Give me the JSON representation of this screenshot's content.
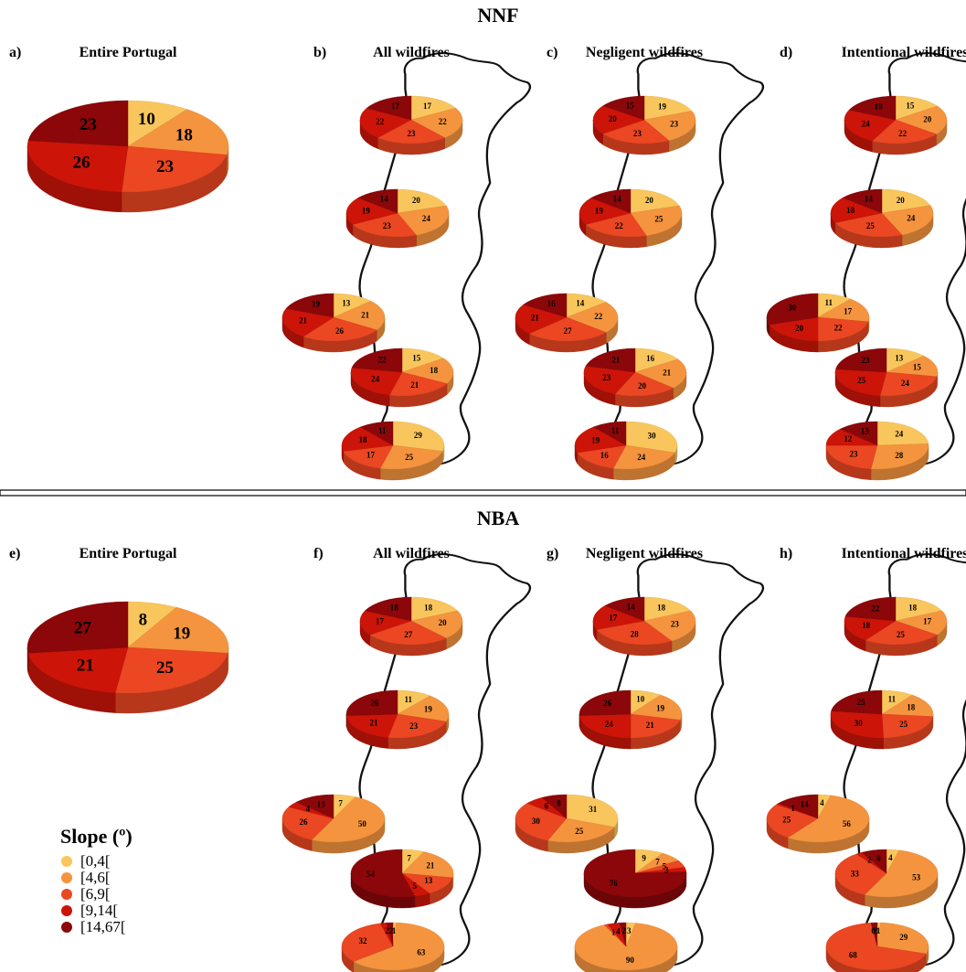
{
  "sections": [
    {
      "title": "NNF"
    },
    {
      "title": "NBA"
    }
  ],
  "legend": {
    "title": "Slope (º)",
    "items": [
      "[0,4[",
      "[4,6[",
      "[6,9[",
      "[9,14[",
      "[14,67["
    ],
    "colors": [
      "#f9c65d",
      "#f5943e",
      "#ea4722",
      "#cc1408",
      "#8b0709"
    ]
  },
  "chart_data": [
    {
      "type": "pie",
      "panel": "a)",
      "title": "Entire Portugal",
      "section": "NNF",
      "categories": [
        "[0,4[",
        "[4,6[",
        "[6,9[",
        "[9,14[",
        "[14,67["
      ],
      "values": [
        10,
        18,
        23,
        26,
        23
      ]
    },
    {
      "type": "pie",
      "panel": "b)",
      "title": "All wildfires",
      "section": "NNF",
      "regions": [
        {
          "values": [
            17,
            22,
            23,
            22,
            17
          ]
        },
        {
          "values": [
            20,
            24,
            23,
            19,
            14
          ]
        },
        {
          "values": [
            13,
            21,
            26,
            21,
            19
          ]
        },
        {
          "values": [
            15,
            18,
            21,
            24,
            22
          ]
        },
        {
          "values": [
            29,
            25,
            17,
            18,
            11
          ]
        }
      ]
    },
    {
      "type": "pie",
      "panel": "c)",
      "title": "Negligent wildfires",
      "section": "NNF",
      "regions": [
        {
          "values": [
            19,
            23,
            23,
            20,
            15
          ]
        },
        {
          "values": [
            20,
            25,
            22,
            19,
            14
          ]
        },
        {
          "values": [
            14,
            22,
            27,
            21,
            16
          ]
        },
        {
          "values": [
            16,
            21,
            20,
            23,
            21
          ]
        },
        {
          "values": [
            30,
            24,
            16,
            19,
            11
          ]
        }
      ]
    },
    {
      "type": "pie",
      "panel": "d)",
      "title": "Intentional wildfires",
      "section": "NNF",
      "regions": [
        {
          "values": [
            15,
            20,
            22,
            24,
            18
          ]
        },
        {
          "values": [
            20,
            24,
            25,
            18,
            14
          ]
        },
        {
          "values": [
            11,
            17,
            22,
            20,
            30
          ]
        },
        {
          "values": [
            13,
            15,
            24,
            25,
            23
          ]
        },
        {
          "values": [
            24,
            28,
            23,
            12,
            13
          ]
        }
      ]
    },
    {
      "type": "pie",
      "panel": "e)",
      "title": "Entire Portugal",
      "section": "NBA",
      "categories": [
        "[0,4[",
        "[4,6[",
        "[6,9[",
        "[9,14[",
        "[14,67["
      ],
      "values": [
        8,
        19,
        25,
        21,
        27
      ]
    },
    {
      "type": "pie",
      "panel": "f)",
      "title": "All wildfires",
      "section": "NBA",
      "regions": [
        {
          "values": [
            18,
            20,
            27,
            17,
            18
          ]
        },
        {
          "values": [
            11,
            19,
            23,
            21,
            26
          ]
        },
        {
          "values": [
            7,
            50,
            26,
            4,
            13
          ]
        },
        {
          "values": [
            7,
            21,
            13,
            5,
            54
          ]
        },
        {
          "values": [
            1,
            63,
            32,
            2,
            2
          ]
        }
      ]
    },
    {
      "type": "pie",
      "panel": "g)",
      "title": "Negligent wildfires",
      "section": "NBA",
      "regions": [
        {
          "values": [
            18,
            23,
            28,
            17,
            14
          ]
        },
        {
          "values": [
            10,
            19,
            21,
            24,
            26
          ]
        },
        {
          "values": [
            31,
            25,
            30,
            6,
            8
          ]
        },
        {
          "values": [
            9,
            7,
            5,
            3,
            76
          ]
        },
        {
          "values": [
            3,
            90,
            1,
            4,
            2
          ]
        }
      ]
    },
    {
      "type": "pie",
      "panel": "h)",
      "title": "Intentional wildfires",
      "section": "NBA",
      "regions": [
        {
          "values": [
            18,
            17,
            25,
            18,
            22
          ]
        },
        {
          "values": [
            11,
            18,
            25,
            30,
            25
          ]
        },
        {
          "values": [
            4,
            56,
            25,
            1,
            14
          ]
        },
        {
          "values": [
            4,
            53,
            33,
            2,
            8
          ]
        },
        {
          "values": [
            1,
            29,
            68,
            0,
            2
          ]
        }
      ]
    }
  ]
}
